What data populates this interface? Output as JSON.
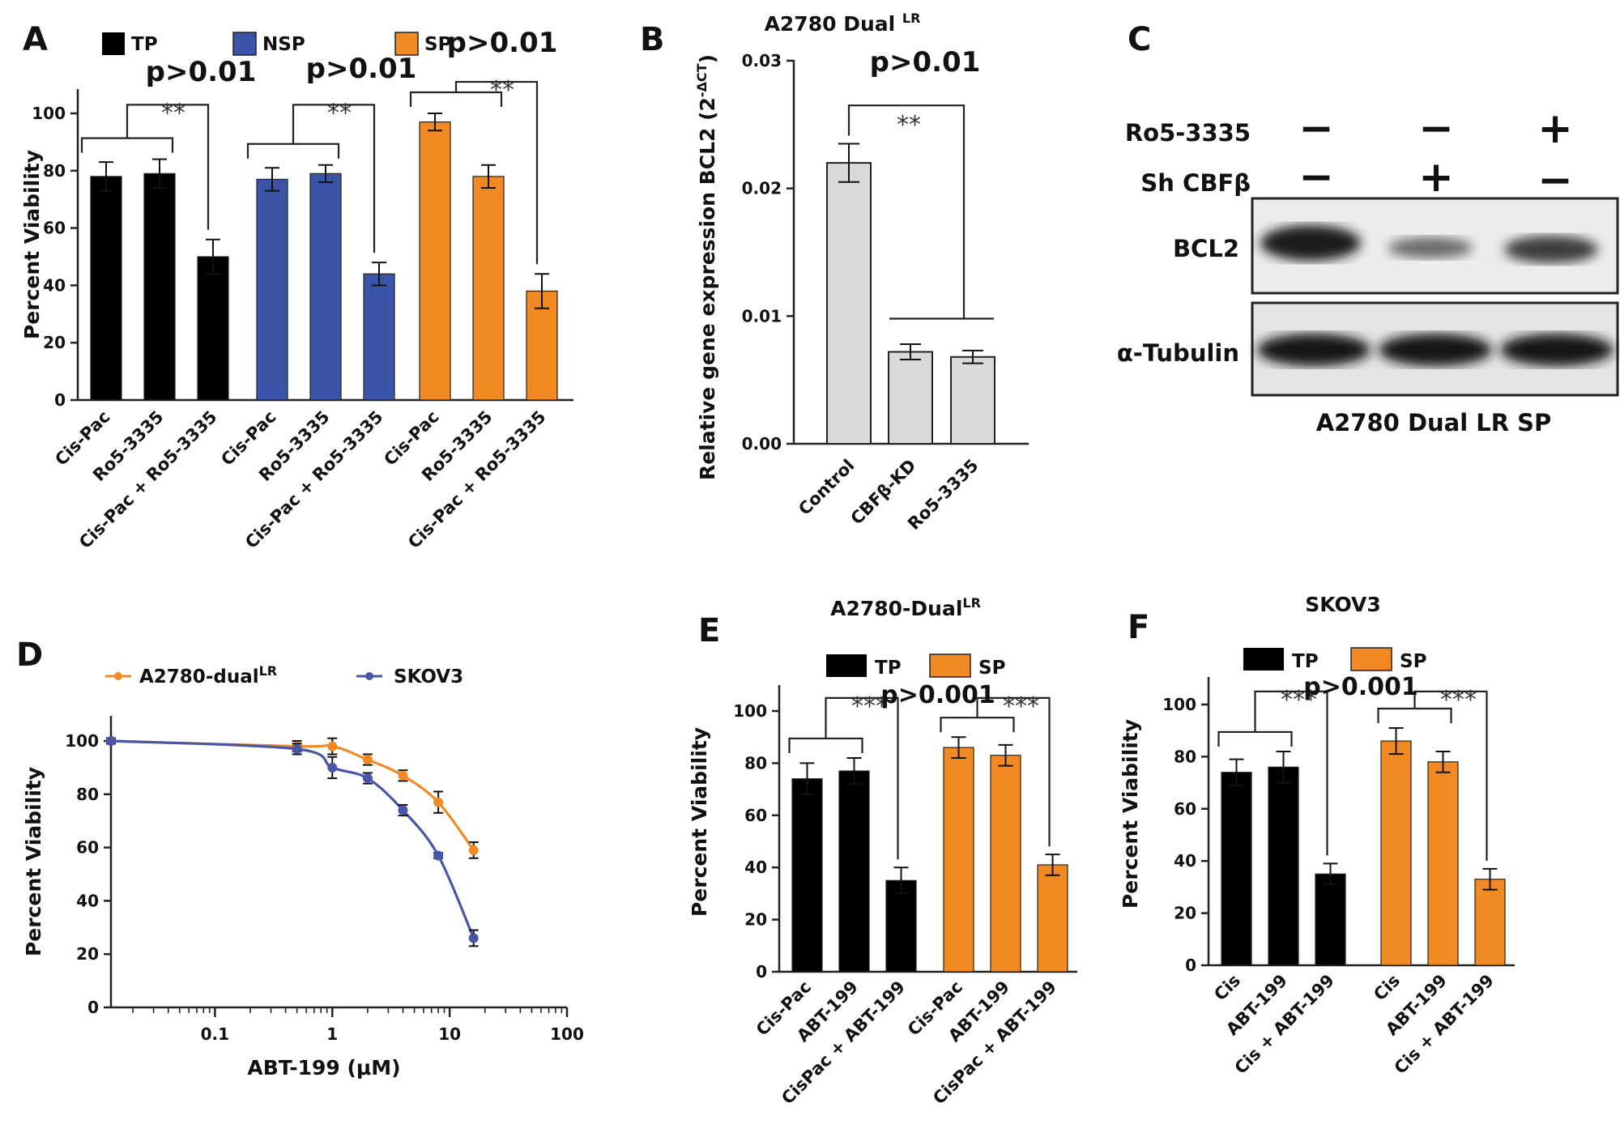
{
  "panels": {
    "A": {
      "letter": "A",
      "chart_data": {
        "type": "bar",
        "legend": [
          {
            "label": "TP",
            "color": "#000000"
          },
          {
            "label": "NSP",
            "color": "#3a55a8"
          },
          {
            "label": "SP",
            "color": "#f28a24"
          }
        ],
        "ylabel": "Percent Viability",
        "ylim": [
          0,
          100
        ],
        "yticks": [
          0,
          20,
          40,
          60,
          80,
          100
        ],
        "groups": [
          {
            "name": "TP",
            "color": "#000000",
            "categories": [
              "Cis-Pac",
              "Ro5-3335",
              "Cis-Pac + Ro5-3335"
            ],
            "values": [
              78,
              79,
              50
            ],
            "errors": [
              5,
              5,
              6
            ],
            "pvalue": "p>0.01",
            "sig": "**"
          },
          {
            "name": "NSP",
            "color": "#3a55a8",
            "categories": [
              "Cis-Pac",
              "Ro5-3335",
              "Cis-Pac + Ro5-3335"
            ],
            "values": [
              77,
              79,
              44
            ],
            "errors": [
              4,
              3,
              4
            ],
            "pvalue": "p>0.01",
            "sig": "**"
          },
          {
            "name": "SP",
            "color": "#f28a24",
            "categories": [
              "Cis-Pac",
              "Ro5-3335",
              "Cis-Pac + Ro5-3335"
            ],
            "values": [
              97,
              78,
              38
            ],
            "errors": [
              3,
              4,
              6
            ],
            "pvalue": "p>0.01",
            "sig": "**"
          }
        ]
      }
    },
    "B": {
      "letter": "B",
      "chart_data": {
        "type": "bar",
        "title": "A2780 Dual",
        "title_sup": "LR",
        "ylabel": "Relative gene expression BCL2 (2",
        "ylabel_sup": "-ΔCT",
        "ylabel_end": ")",
        "ylim": [
          0,
          0.03
        ],
        "yticks": [
          "0.00",
          "0.01",
          "0.02",
          "0.03"
        ],
        "categories": [
          "Control",
          "CBFβ-KD",
          "Ro5-3335"
        ],
        "values": [
          0.022,
          0.0072,
          0.0068
        ],
        "errors": [
          0.0015,
          0.0006,
          0.0005
        ],
        "color": "#d9d9d9",
        "pvalue": "p>0.01",
        "sig": "**"
      }
    },
    "C": {
      "letter": "C",
      "rows": [
        {
          "label": "Ro5-3335",
          "signs": [
            "−",
            "−",
            "+"
          ]
        },
        {
          "label": "Sh CBFβ",
          "signs": [
            "−",
            "+",
            "−"
          ]
        }
      ],
      "bands": [
        "BCL2",
        "α-Tubulin"
      ],
      "caption": "A2780 Dual LR SP"
    },
    "D": {
      "letter": "D",
      "chart_data": {
        "type": "line",
        "xscale": "log",
        "xlabel": "ABT-199 (μM)",
        "ylabel": "Percent Viability",
        "xlim": [
          0.013,
          100
        ],
        "ylim": [
          0,
          100
        ],
        "xticks": [
          "0.1",
          "1",
          "10",
          "100"
        ],
        "yticks": [
          0,
          20,
          40,
          60,
          80,
          100
        ],
        "series": [
          {
            "name": "A2780-dual",
            "name_sup": "LR",
            "color": "#f28a24",
            "x": [
              0.013,
              0.5,
              1,
              2,
              4,
              8,
              16
            ],
            "y": [
              100,
              98,
              98,
              93,
              87,
              77,
              59
            ],
            "err": [
              1,
              2,
              3,
              2,
              2,
              4,
              3
            ]
          },
          {
            "name": "SKOV3",
            "color": "#4a55a8",
            "x": [
              0.013,
              0.5,
              1,
              2,
              4,
              8,
              16
            ],
            "y": [
              100,
              97,
              90,
              86,
              74,
              57,
              26
            ],
            "err": [
              1,
              2,
              4,
              2,
              2,
              1,
              3
            ]
          }
        ]
      }
    },
    "E": {
      "letter": "E",
      "chart_data": {
        "type": "bar",
        "title": "A2780-Dual",
        "title_sup": "LR",
        "ylabel": "Percent Viability",
        "ylim": [
          0,
          100
        ],
        "yticks": [
          0,
          20,
          40,
          60,
          80,
          100
        ],
        "legend": [
          {
            "label": "TP",
            "color": "#000000"
          },
          {
            "label": "SP",
            "color": "#f28a24"
          }
        ],
        "groups": [
          {
            "name": "TP",
            "color": "#000000",
            "categories": [
              "Cis-Pac",
              "ABT-199",
              "CisPac + ABT-199"
            ],
            "values": [
              74,
              77,
              35
            ],
            "errors": [
              6,
              5,
              5
            ],
            "sig": "***"
          },
          {
            "name": "SP",
            "color": "#f28a24",
            "categories": [
              "Cis-Pac",
              "ABT-199",
              "CisPac + ABT-199"
            ],
            "values": [
              86,
              83,
              41
            ],
            "errors": [
              4,
              4,
              4
            ],
            "sig": "***"
          }
        ],
        "pvalue": "p>0.001"
      }
    },
    "F": {
      "letter": "F",
      "chart_data": {
        "type": "bar",
        "title": "SKOV3",
        "ylabel": "Percent Viability",
        "ylim": [
          0,
          100
        ],
        "yticks": [
          0,
          20,
          40,
          60,
          80,
          100
        ],
        "legend": [
          {
            "label": "TP",
            "color": "#000000"
          },
          {
            "label": "SP",
            "color": "#f28a24"
          }
        ],
        "groups": [
          {
            "name": "TP",
            "color": "#000000",
            "categories": [
              "Cis",
              "ABT-199",
              "Cis + ABT-199"
            ],
            "values": [
              74,
              76,
              35
            ],
            "errors": [
              5,
              6,
              4
            ],
            "sig": "***"
          },
          {
            "name": "SP",
            "color": "#f28a24",
            "categories": [
              "Cis",
              "ABT-199",
              "Cis + ABT-199"
            ],
            "values": [
              86,
              78,
              33
            ],
            "errors": [
              5,
              4,
              4
            ],
            "sig": "***"
          }
        ],
        "pvalue": "p>0.001"
      }
    }
  }
}
